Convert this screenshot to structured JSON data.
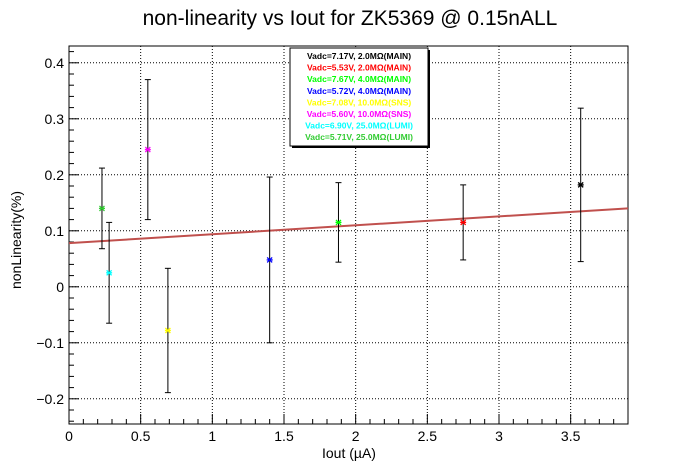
{
  "chart_data": {
    "type": "scatter",
    "title": "non-linearity vs Iout for ZK5369 @ 0.15nALL",
    "xlabel": "Iout (µA)",
    "ylabel": "nonLinearity(%)",
    "xlim": [
      0,
      3.9
    ],
    "ylim": [
      -0.245,
      0.43
    ],
    "xticks": [
      0,
      0.5,
      1,
      1.5,
      2,
      2.5,
      3,
      3.5
    ],
    "xtick_labels": [
      "0",
      "0.5",
      "1",
      "1.5",
      "2",
      "2.5",
      "3",
      "3.5"
    ],
    "yticks": [
      -0.2,
      -0.1,
      0,
      0.1,
      0.2,
      0.3,
      0.4
    ],
    "ytick_labels": [
      "−0.2",
      "−0.1",
      "0",
      "0.1",
      "0.2",
      "0.3",
      "0.4"
    ],
    "grid": true,
    "legend_position": "top-center",
    "series": [
      {
        "name": "Vadc=7.17V, 2.0MΩ(MAIN)",
        "color": "#000000",
        "points": [
          {
            "x": 3.57,
            "y": 0.182,
            "err": 0.137
          }
        ]
      },
      {
        "name": "Vadc=5.53V, 2.0MΩ(MAIN)",
        "color": "#ff0000",
        "points": [
          {
            "x": 2.75,
            "y": 0.115,
            "err": 0.067
          }
        ]
      },
      {
        "name": "Vadc=7.67V, 4.0MΩ(MAIN)",
        "color": "#00ff00",
        "points": [
          {
            "x": 1.88,
            "y": 0.115,
            "err": 0.071
          }
        ]
      },
      {
        "name": "Vadc=5.72V, 4.0MΩ(MAIN)",
        "color": "#0000ff",
        "points": [
          {
            "x": 1.4,
            "y": 0.048,
            "err": 0.148
          }
        ]
      },
      {
        "name": "Vadc=7.08V, 10.0MΩ(SNS)",
        "color": "#ffff00",
        "points": [
          {
            "x": 0.69,
            "y": -0.078,
            "err": 0.111
          }
        ]
      },
      {
        "name": "Vadc=5.60V, 10.0MΩ(SNS)",
        "color": "#ff00ff",
        "points": [
          {
            "x": 0.55,
            "y": 0.245,
            "err": 0.125
          }
        ]
      },
      {
        "name": "Vadc=6.90V, 25.0MΩ(LUMI)",
        "color": "#00ffff",
        "points": [
          {
            "x": 0.28,
            "y": 0.025,
            "err": 0.09
          }
        ]
      },
      {
        "name": "Vadc=5.71V, 25.0MΩ(LUMI)",
        "color": "#33cc33",
        "points": [
          {
            "x": 0.23,
            "y": 0.14,
            "err": 0.072
          }
        ]
      }
    ],
    "fit_line": {
      "x": [
        0,
        3.9
      ],
      "y": [
        0.078,
        0.14
      ],
      "color": "#c0504d"
    }
  }
}
